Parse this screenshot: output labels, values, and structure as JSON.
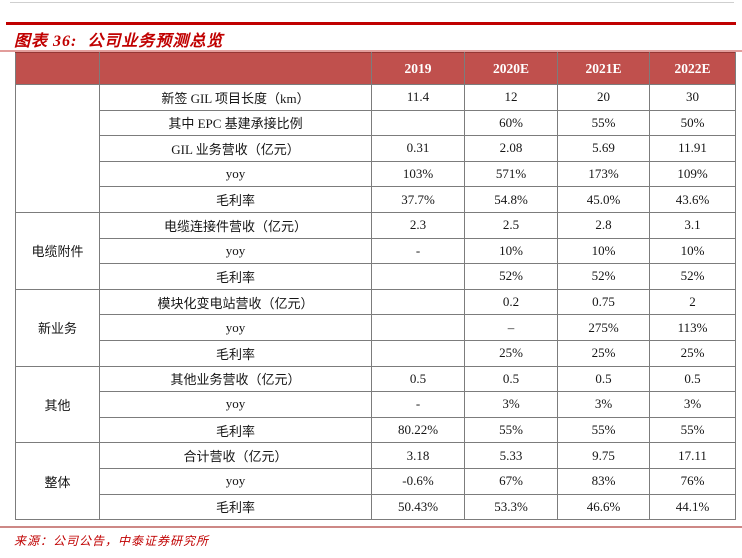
{
  "page": {
    "title": "图表 36:  公司业务预测总览",
    "source": "来源：公司公告，中泰证券研究所"
  },
  "colors": {
    "title_red": "#c00000",
    "header_bg": "#c0504d",
    "header_text": "#ffffff",
    "cell_border_gray": "#7c7c7c",
    "table_top_line_salmon": "#e29d9b",
    "bottom_line_salmon": "#cd8886"
  },
  "table": {
    "columns": [
      "",
      "",
      "2019",
      "2020E",
      "2021E",
      "2022E"
    ],
    "groups": [
      {
        "label": "",
        "rows": [
          {
            "metric": "新签 GIL 项目长度（km）",
            "values": [
              "11.4",
              "12",
              "20",
              "30"
            ]
          },
          {
            "metric": "其中 EPC 基建承接比例",
            "values": [
              "",
              "60%",
              "55%",
              "50%"
            ]
          },
          {
            "metric": "GIL 业务营收（亿元）",
            "values": [
              "0.31",
              "2.08",
              "5.69",
              "11.91"
            ]
          },
          {
            "metric": "yoy",
            "values": [
              "103%",
              "571%",
              "173%",
              "109%"
            ]
          },
          {
            "metric": "毛利率",
            "values": [
              "37.7%",
              "54.8%",
              "45.0%",
              "43.6%"
            ]
          }
        ]
      },
      {
        "label": "电缆附件",
        "rows": [
          {
            "metric": "电缆连接件营收（亿元）",
            "values": [
              "2.3",
              "2.5",
              "2.8",
              "3.1"
            ]
          },
          {
            "metric": "yoy",
            "values": [
              "-",
              "10%",
              "10%",
              "10%"
            ]
          },
          {
            "metric": "毛利率",
            "values": [
              "",
              "52%",
              "52%",
              "52%"
            ]
          }
        ]
      },
      {
        "label": "新业务",
        "rows": [
          {
            "metric": "模块化变电站营收（亿元）",
            "values": [
              "",
              "0.2",
              "0.75",
              "2"
            ]
          },
          {
            "metric": "yoy",
            "values": [
              "",
              "–",
              "275%",
              "113%"
            ]
          },
          {
            "metric": "毛利率",
            "values": [
              "",
              "25%",
              "25%",
              "25%"
            ]
          }
        ]
      },
      {
        "label": "其他",
        "rows": [
          {
            "metric": "其他业务营收（亿元）",
            "values": [
              "0.5",
              "0.5",
              "0.5",
              "0.5"
            ]
          },
          {
            "metric": "yoy",
            "values": [
              "-",
              "3%",
              "3%",
              "3%"
            ]
          },
          {
            "metric": "毛利率",
            "values": [
              "80.22%",
              "55%",
              "55%",
              "55%"
            ]
          }
        ]
      },
      {
        "label": "整体",
        "rows": [
          {
            "metric": "合计营收（亿元）",
            "values": [
              "3.18",
              "5.33",
              "9.75",
              "17.11"
            ]
          },
          {
            "metric": "yoy",
            "values": [
              "-0.6%",
              "67%",
              "83%",
              "76%"
            ]
          },
          {
            "metric": "毛利率",
            "values": [
              "50.43%",
              "53.3%",
              "46.6%",
              "44.1%"
            ]
          }
        ]
      }
    ]
  }
}
